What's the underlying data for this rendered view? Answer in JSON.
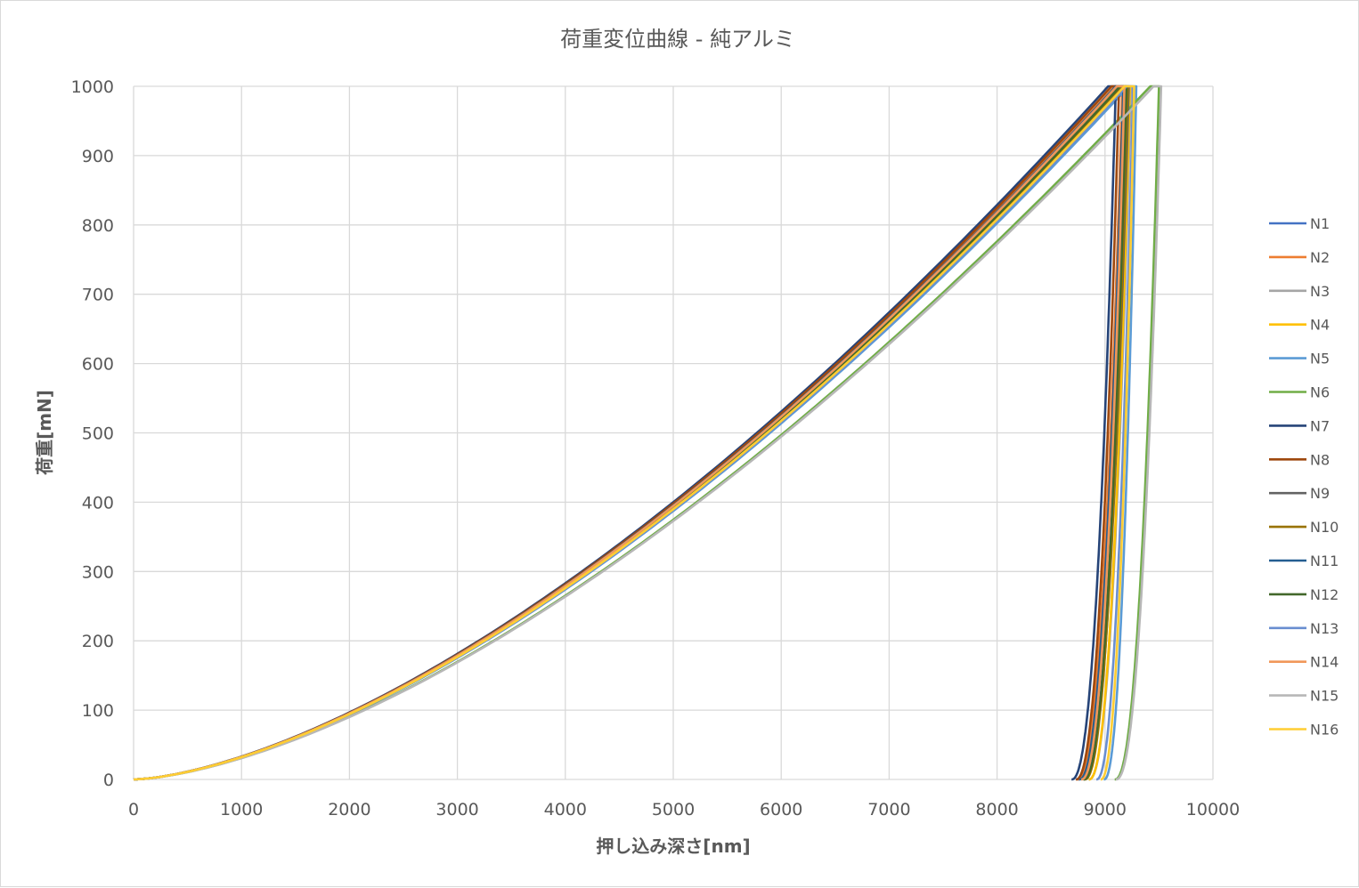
{
  "chart_data": {
    "type": "line",
    "title": "荷重変位曲線 - 純アルミ",
    "xlabel": "押し込み深さ[nm]",
    "ylabel": "荷重[mN]",
    "xlim": [
      0,
      10000
    ],
    "ylim": [
      0,
      1000
    ],
    "xticks": [
      "0",
      "1000",
      "2000",
      "3000",
      "4000",
      "5000",
      "6000",
      "7000",
      "8000",
      "9000",
      "10000"
    ],
    "yticks": [
      "0",
      "100",
      "200",
      "300",
      "400",
      "500",
      "600",
      "700",
      "800",
      "900",
      "1000"
    ],
    "grid": true,
    "legend_position": "right",
    "loading_exponent": 1.55,
    "unloading_exponent": 2.3,
    "series": [
      {
        "name": "N1",
        "color": "#4472C4",
        "max_depth": 9120,
        "final_depth": 8750,
        "hold_end_depth": 9190
      },
      {
        "name": "N2",
        "color": "#ED7D31",
        "max_depth": 9090,
        "final_depth": 8740,
        "hold_end_depth": 9160
      },
      {
        "name": "N3",
        "color": "#A5A5A5",
        "max_depth": 9180,
        "final_depth": 8850,
        "hold_end_depth": 9240
      },
      {
        "name": "N4",
        "color": "#FFC000",
        "max_depth": 9170,
        "final_depth": 8850,
        "hold_end_depth": 9230
      },
      {
        "name": "N5",
        "color": "#5B9BD5",
        "max_depth": 9220,
        "final_depth": 8990,
        "hold_end_depth": 9290
      },
      {
        "name": "N6",
        "color": "#70AD47",
        "max_depth": 9420,
        "final_depth": 9090,
        "hold_end_depth": 9500
      },
      {
        "name": "N7",
        "color": "#264478",
        "max_depth": 9030,
        "final_depth": 8690,
        "hold_end_depth": 9100
      },
      {
        "name": "N8",
        "color": "#9E480E",
        "max_depth": 9060,
        "final_depth": 8730,
        "hold_end_depth": 9130
      },
      {
        "name": "N9",
        "color": "#636363",
        "max_depth": 9160,
        "final_depth": 8800,
        "hold_end_depth": 9220
      },
      {
        "name": "N10",
        "color": "#997300",
        "max_depth": 9150,
        "final_depth": 8810,
        "hold_end_depth": 9210
      },
      {
        "name": "N11",
        "color": "#255E91",
        "max_depth": 9100,
        "final_depth": 8760,
        "hold_end_depth": 9170
      },
      {
        "name": "N12",
        "color": "#43682B",
        "max_depth": 9140,
        "final_depth": 8800,
        "hold_end_depth": 9200
      },
      {
        "name": "N13",
        "color": "#698ED0",
        "max_depth": 9200,
        "final_depth": 8920,
        "hold_end_depth": 9260
      },
      {
        "name": "N14",
        "color": "#F1975A",
        "max_depth": 9110,
        "final_depth": 8780,
        "hold_end_depth": 9180
      },
      {
        "name": "N15",
        "color": "#B7B7B7",
        "max_depth": 9450,
        "final_depth": 9100,
        "hold_end_depth": 9520
      },
      {
        "name": "N16",
        "color": "#FFCD33",
        "max_depth": 9180,
        "final_depth": 8960,
        "hold_end_depth": 9270
      }
    ]
  }
}
